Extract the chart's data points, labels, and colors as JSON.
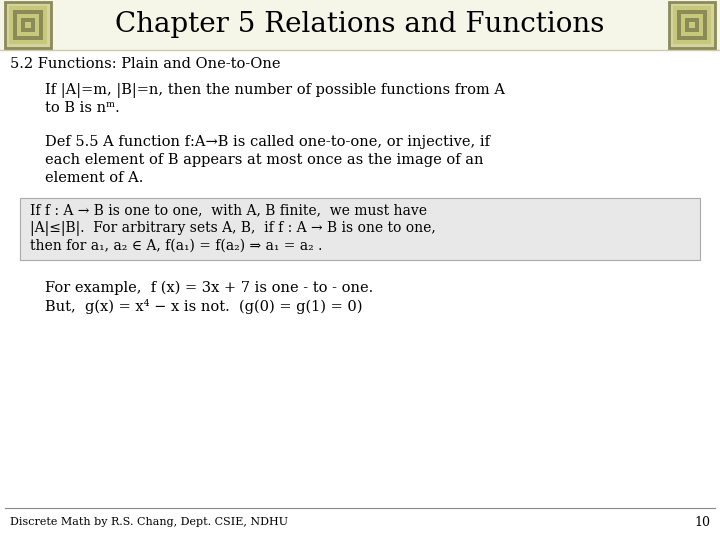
{
  "title": "Chapter 5 Relations and Functions",
  "subtitle": "5.2 Functions: Plain and One-to-One",
  "bg_color": "#ffffff",
  "title_bg_color": "#ffffff",
  "title_font_size": 20,
  "subtitle_font_size": 10.5,
  "body_font_size": 10.5,
  "footer_text": "Discrete Math by R.S. Chang, Dept. CSIE, NDHU",
  "footer_page": "10",
  "paragraph1_lines": [
    "If |A|=m, |B|=n, then the number of possible functions from A",
    "to B is nᵐ."
  ],
  "paragraph2_lines": [
    "Def 5.5 A function f:A→B is called one-to-one, or injective, if",
    "each element of B appears at most once as the image of an",
    "element of A."
  ],
  "box_lines": [
    "If f : A → B is one to one,  with A, B finite,  we must have",
    "|A|≤|B|.  For arbitrary sets A, B,  if f : A → B is one to one,",
    "then for a₁, a₂ ∈ A, f(a₁) = f(a₂) ⇒ a₁ = a₂ ."
  ],
  "example_lines": [
    "For example,  f (x) = 3x + 7 is one - to - one.",
    "But,  g(x) = x⁴ − x is not.  (g(0) = g(1) = 0)"
  ],
  "corner_outer_color": "#8b8b5a",
  "corner_inner_color": "#c8c87a",
  "corner_bg": "#d4d4a0",
  "text_color": "#000000",
  "box_bg": "#e8e8e8",
  "box_border": "#aaaaaa",
  "title_bar_bg": "#f5f5e8",
  "footer_line_color": "#888888"
}
